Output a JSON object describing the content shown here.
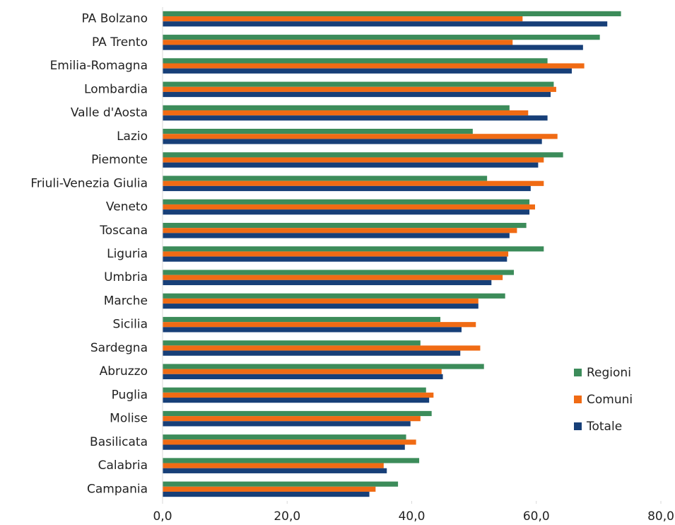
{
  "chart_data": {
    "type": "hbar",
    "categories": [
      "PA Bolzano",
      "PA Trento",
      "Emilia-Romagna",
      "Lombardia",
      "Valle d'Aosta",
      "Lazio",
      "Piemonte",
      "Friuli-Venezia Giulia",
      "Veneto",
      "Toscana",
      "Liguria",
      "Umbria",
      "Marche",
      "Sicilia",
      "Sardegna",
      "Abruzzo",
      "Puglia",
      "Molise",
      "Basilicata",
      "Calabria",
      "Campania"
    ],
    "series": [
      {
        "name": "Regioni",
        "color": "#3c8c5a",
        "values": [
          73.6,
          70.2,
          61.8,
          62.8,
          55.7,
          49.8,
          64.3,
          52.1,
          58.9,
          58.4,
          61.2,
          56.4,
          55.0,
          44.6,
          41.4,
          51.6,
          42.3,
          43.2,
          39.1,
          41.2,
          37.8
        ]
      },
      {
        "name": "Comuni",
        "color": "#f06b14",
        "values": [
          57.8,
          56.2,
          67.7,
          63.2,
          58.7,
          63.4,
          61.2,
          61.2,
          59.8,
          56.9,
          55.5,
          54.6,
          50.7,
          50.3,
          51.0,
          44.8,
          43.5,
          41.4,
          40.7,
          35.5,
          34.2
        ]
      },
      {
        "name": "Totale",
        "color": "#173f78",
        "values": [
          71.4,
          67.5,
          65.7,
          62.3,
          61.8,
          60.9,
          60.3,
          59.1,
          58.9,
          55.7,
          55.3,
          52.8,
          50.7,
          48.0,
          47.8,
          45.0,
          42.8,
          39.8,
          38.9,
          36.0,
          33.2
        ]
      }
    ],
    "xlim": [
      0,
      80
    ],
    "xticks": [
      {
        "value": 0,
        "label": "0,0"
      },
      {
        "value": 20,
        "label": "20,0"
      },
      {
        "value": 40,
        "label": "40,0"
      },
      {
        "value": 60,
        "label": "60,0"
      },
      {
        "value": 80,
        "label": "80,0"
      }
    ],
    "legend": "right"
  }
}
